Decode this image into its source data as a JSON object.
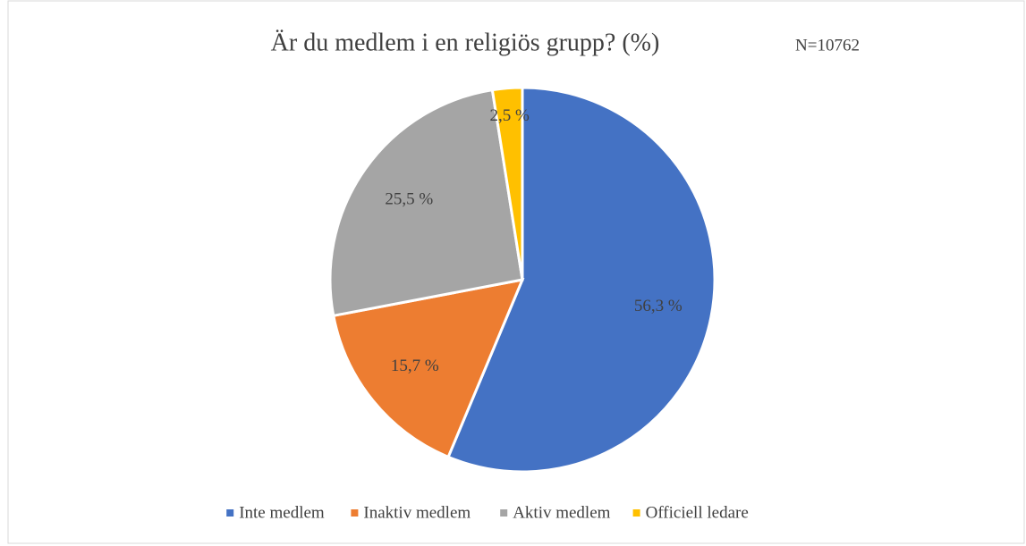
{
  "chart_data": {
    "type": "pie",
    "title": "Är du medlem i en religiös grupp? (%)",
    "annotation": "N=10762",
    "categories": [
      "Inte medlem",
      "Inaktiv medlem",
      "Aktiv medlem",
      "Officiell ledare"
    ],
    "values": [
      56.3,
      15.7,
      25.5,
      2.5
    ],
    "value_labels": [
      "56,3 %",
      "15,7 %",
      "25,5 %",
      "2,5 %"
    ],
    "colors": [
      "#4472c4",
      "#ed7d31",
      "#a5a5a5",
      "#ffc000"
    ],
    "legend": "bottom"
  }
}
